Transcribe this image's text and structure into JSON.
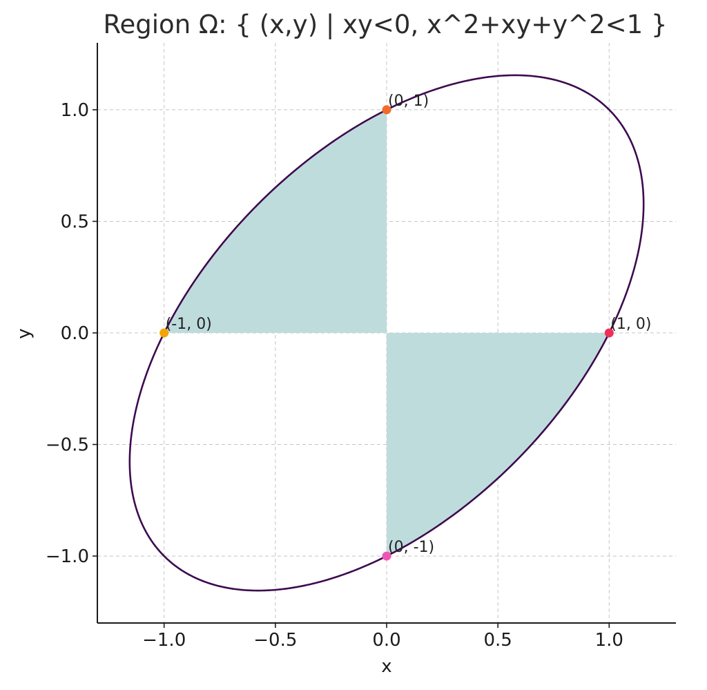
{
  "chart_data": {
    "type": "area",
    "title": "Region Ω: { (x,y) | xy<0, x^2+xy+y^2<1 }",
    "xlabel": "x",
    "ylabel": "y",
    "xlim": [
      -1.3,
      1.3
    ],
    "ylim": [
      -1.3,
      1.3
    ],
    "grid": true,
    "xticks": [
      -1.0,
      -0.5,
      0.0,
      0.5,
      1.0
    ],
    "yticks": [
      -1.0,
      -0.5,
      0.0,
      0.5,
      1.0
    ],
    "xtick_labels": [
      "−1.0",
      "−0.5",
      "0.0",
      "0.5",
      "1.0"
    ],
    "ytick_labels": [
      "−1.0",
      "−0.5",
      "0.0",
      "0.5",
      "1.0"
    ],
    "boundary_curve": "x^2+xy+y^2=1",
    "shaded_quadrants": [
      "x<0,y>0",
      "x>0,y<0"
    ],
    "colors": {
      "fill": "#bfdcdc",
      "boundary": "#3d0a4f"
    },
    "points": [
      {
        "x": 0,
        "y": 1,
        "label": "(0, 1)",
        "color": "#f26b2a"
      },
      {
        "x": -1,
        "y": 0,
        "label": "(-1, 0)",
        "color": "#f5a300"
      },
      {
        "x": 1,
        "y": 0,
        "label": "(1, 0)",
        "color": "#ef2f55"
      },
      {
        "x": 0,
        "y": -1,
        "label": "(0, -1)",
        "color": "#ef55b5"
      }
    ]
  }
}
